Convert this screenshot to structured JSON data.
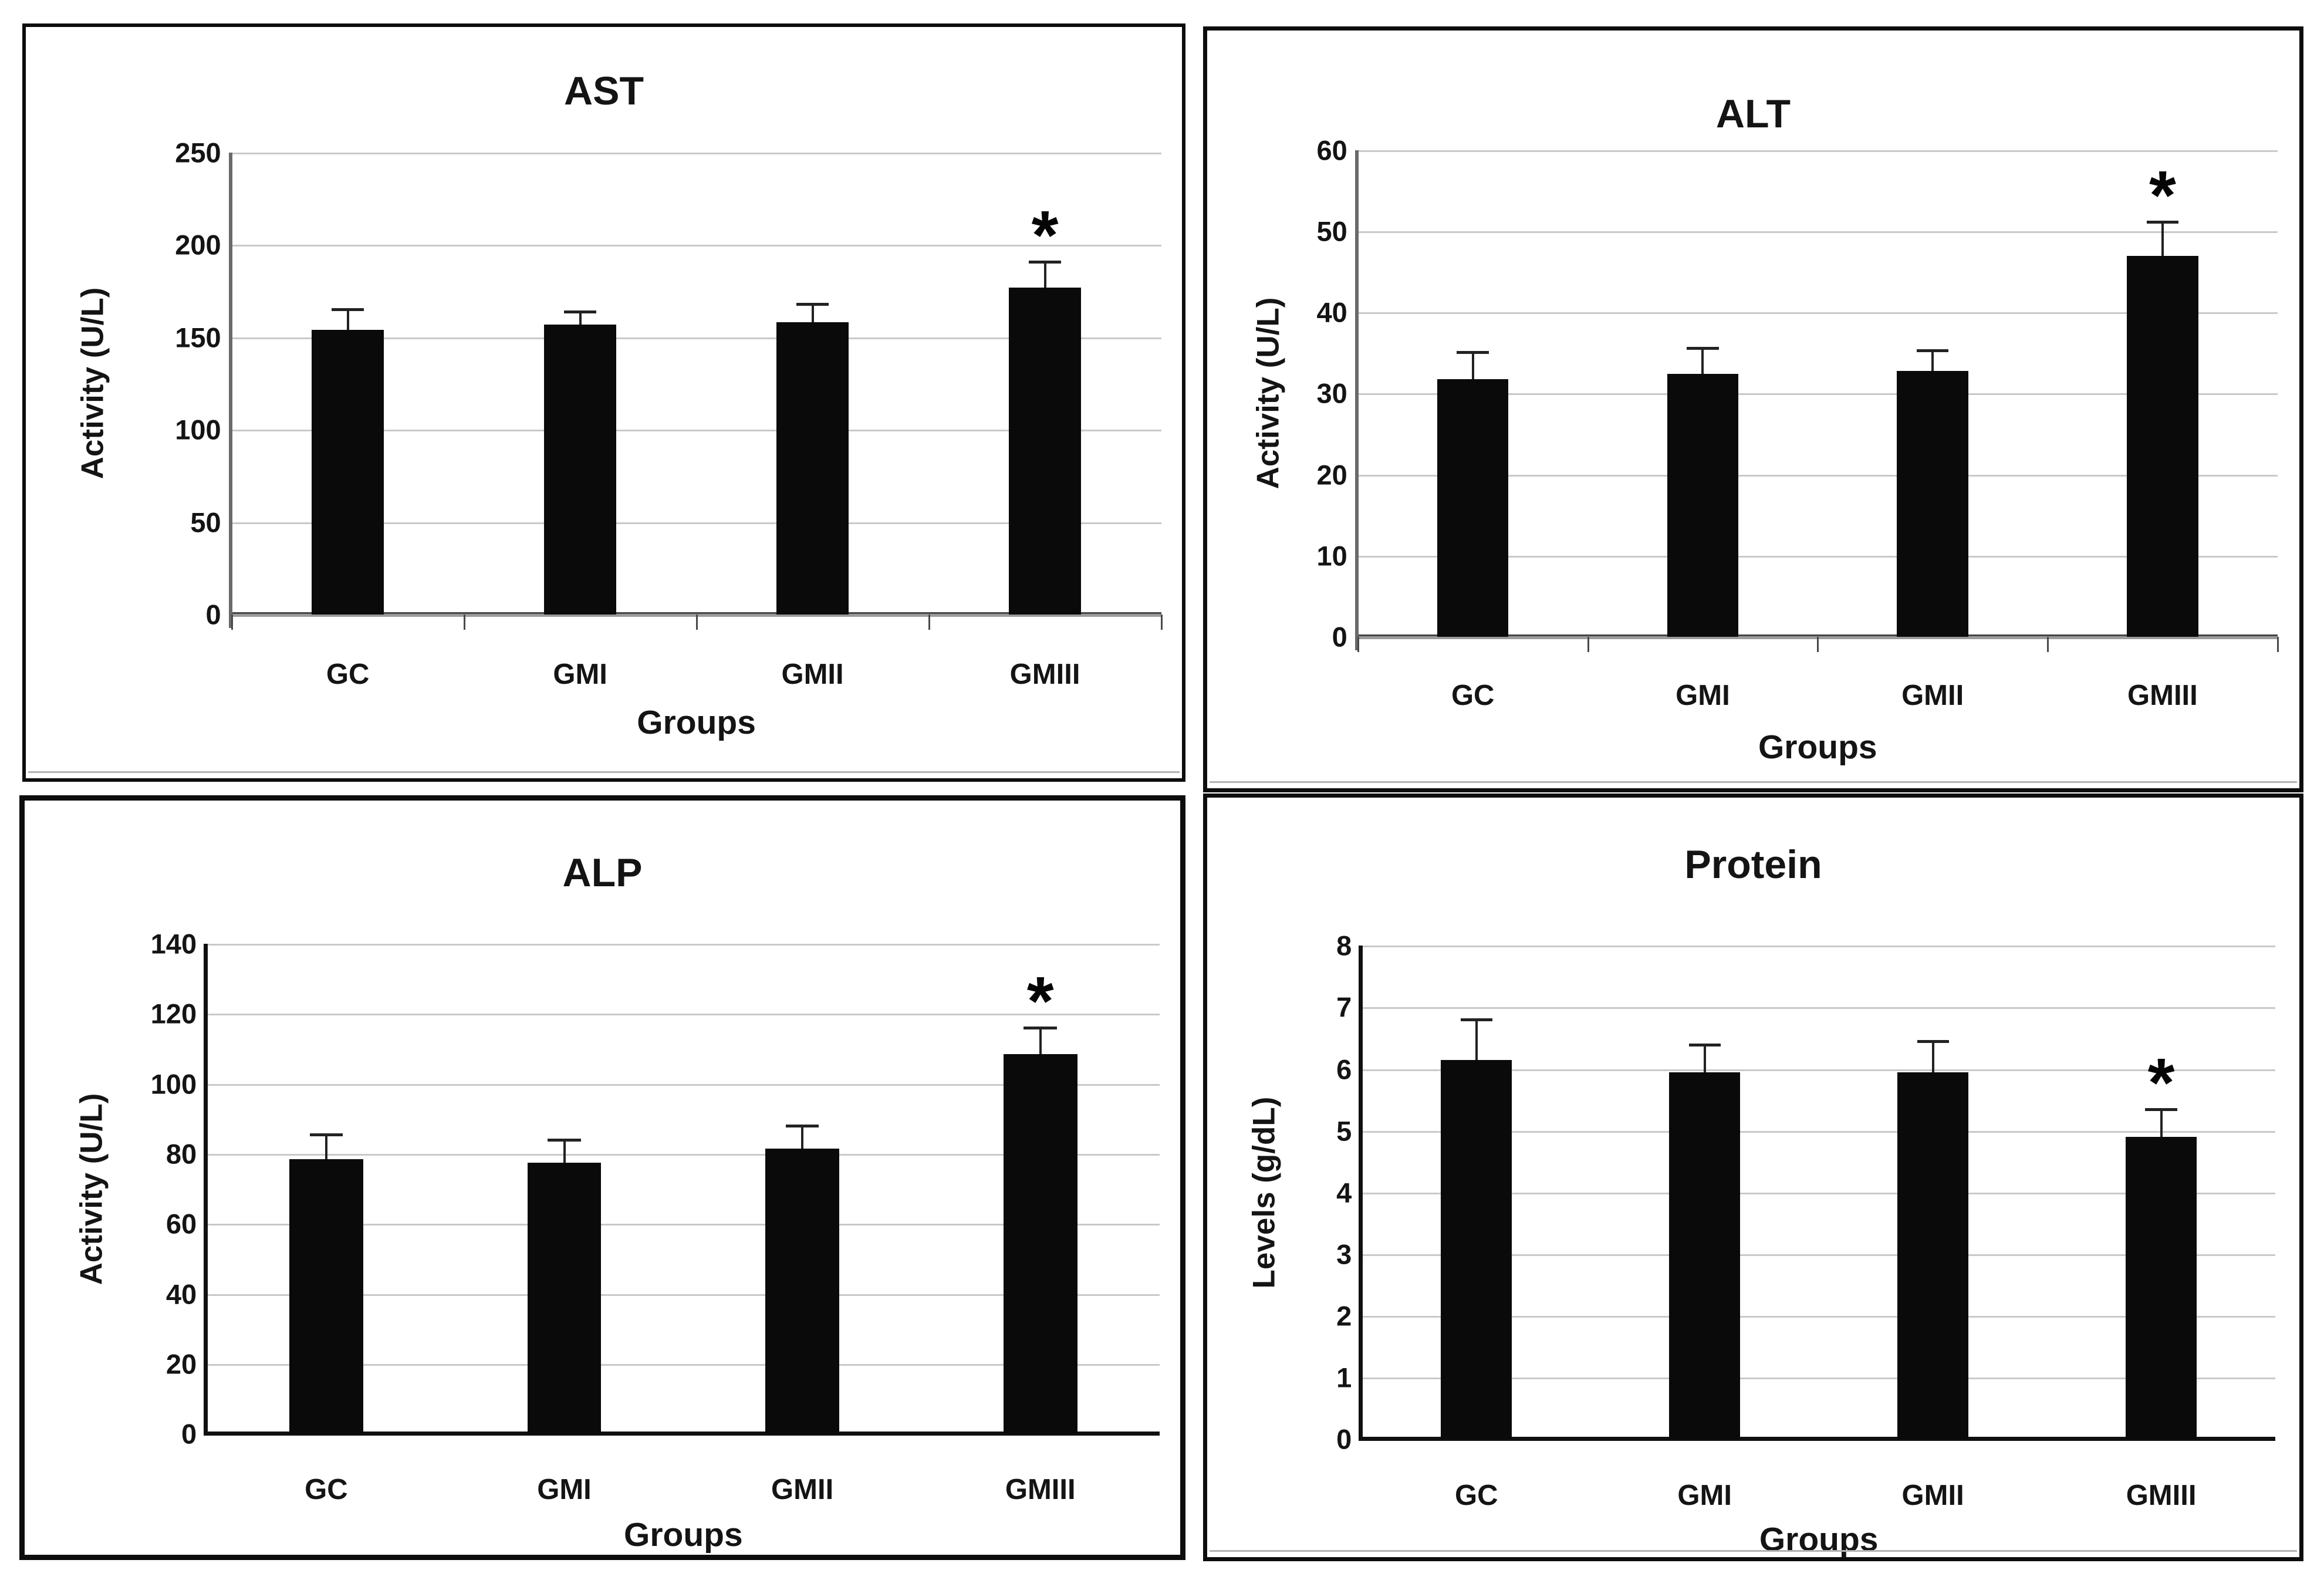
{
  "figure": {
    "background_color": "#ffffff",
    "bar_color": "#0a0a0a",
    "gridline_color": "#c9c9c9",
    "error_bar_color": "#222222",
    "panel_border_color": "#0d0d0d",
    "significance_marker": "*"
  },
  "chart_data": [
    {
      "type": "bar",
      "title": "AST",
      "xlabel": "Groups",
      "ylabel": "Activity (U/L)",
      "categories": [
        "GC",
        "GMI",
        "GMII",
        "GMIII"
      ],
      "values": [
        154,
        157,
        158,
        177
      ],
      "errors_upper": [
        11,
        7,
        10,
        14
      ],
      "significance": [
        "",
        "",
        "",
        "*"
      ],
      "ylim": [
        0,
        250
      ],
      "yticks": [
        "0",
        "50",
        "100",
        "150",
        "200",
        "250"
      ],
      "grid": true,
      "legend": false
    },
    {
      "type": "bar",
      "title": "ALT",
      "xlabel": "Groups",
      "ylabel": "Activity (U/L)",
      "categories": [
        "GC",
        "GMI",
        "GMII",
        "GMIII"
      ],
      "values": [
        31.8,
        32.4,
        32.8,
        47
      ],
      "errors_upper": [
        3.3,
        3.2,
        2.5,
        4.2
      ],
      "significance": [
        "",
        "",
        "",
        "*"
      ],
      "ylim": [
        0,
        60
      ],
      "yticks": [
        "0",
        "10",
        "20",
        "30",
        "40",
        "50",
        "60"
      ],
      "grid": true,
      "legend": false
    },
    {
      "type": "bar",
      "title": "ALP",
      "xlabel": "Groups",
      "ylabel": "Activity (U/L)",
      "categories": [
        "GC",
        "GMI",
        "GMII",
        "GMIII"
      ],
      "values": [
        78.5,
        77.5,
        81.5,
        108.5
      ],
      "errors_upper": [
        7,
        6.5,
        6.5,
        7.5
      ],
      "significance": [
        "",
        "",
        "",
        "*"
      ],
      "ylim": [
        0,
        140
      ],
      "yticks": [
        "0",
        "20",
        "40",
        "60",
        "80",
        "100",
        "120",
        "140"
      ],
      "grid": true,
      "legend": false
    },
    {
      "type": "bar",
      "title": "Protein",
      "xlabel": "Groups",
      "ylabel": "Levels (g/dL)",
      "categories": [
        "GC",
        "GMI",
        "GMII",
        "GMIII"
      ],
      "values": [
        6.15,
        5.95,
        5.95,
        4.9
      ],
      "errors_upper": [
        0.65,
        0.45,
        0.5,
        0.45
      ],
      "significance": [
        "",
        "",
        "",
        "*"
      ],
      "ylim": [
        0,
        8
      ],
      "yticks": [
        "0",
        "1",
        "2",
        "3",
        "4",
        "5",
        "6",
        "7",
        "8"
      ],
      "grid": true,
      "legend": false
    }
  ]
}
